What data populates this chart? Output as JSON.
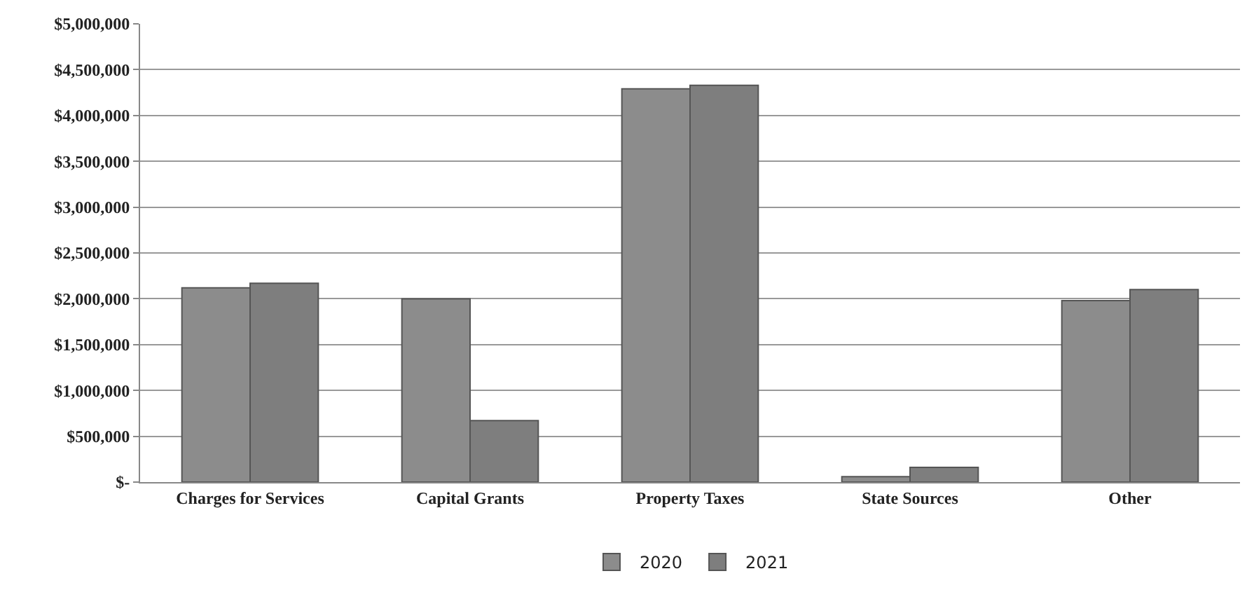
{
  "chart_data": {
    "type": "bar",
    "categories": [
      "Charges for Services",
      "Capital Grants",
      "Property Taxes",
      "State Sources",
      "Other"
    ],
    "series": [
      {
        "name": "2020",
        "color": "#8c8c8c",
        "values": [
          2120000,
          2000000,
          4290000,
          60000,
          1980000
        ]
      },
      {
        "name": "2021",
        "color": "#7e7e7e",
        "values": [
          2170000,
          670000,
          4330000,
          160000,
          2100000
        ]
      }
    ],
    "ylim": [
      0,
      5000000
    ],
    "yticks": [
      {
        "value": 0,
        "label": "$-"
      },
      {
        "value": 500000,
        "label": "$500,000"
      },
      {
        "value": 1000000,
        "label": "$1,000,000"
      },
      {
        "value": 1500000,
        "label": "$1,500,000"
      },
      {
        "value": 2000000,
        "label": "$2,000,000"
      },
      {
        "value": 2500000,
        "label": "$2,500,000"
      },
      {
        "value": 3000000,
        "label": "$3,000,000"
      },
      {
        "value": 3500000,
        "label": "$3,500,000"
      },
      {
        "value": 4000000,
        "label": "$4,000,000"
      },
      {
        "value": 4500000,
        "label": "$4,500,000"
      },
      {
        "value": 5000000,
        "label": "$5,000,000"
      }
    ],
    "grid": "y",
    "legend": "bottom"
  }
}
